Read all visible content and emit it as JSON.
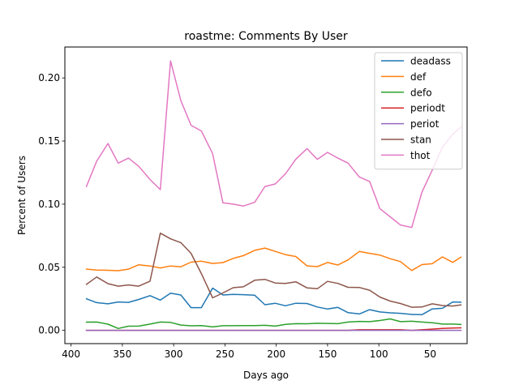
{
  "chart_data": {
    "type": "line",
    "title": "roastme: Comments By User",
    "xlabel": "Days ago",
    "ylabel": "Percent of Users",
    "xlim": [
      406,
      14
    ],
    "ylim": [
      -0.0105,
      0.2245
    ],
    "x_ticks": [
      400,
      350,
      300,
      250,
      200,
      150,
      100,
      50
    ],
    "x_tick_labels": [
      "400",
      "350",
      "300",
      "250",
      "200",
      "150",
      "100",
      "50"
    ],
    "y_ticks": [
      0.0,
      0.05,
      0.1,
      0.15,
      0.2
    ],
    "y_tick_labels": [
      "0.00",
      "0.05",
      "0.10",
      "0.15",
      "0.20"
    ],
    "grid": false,
    "legend_position": "upper right",
    "x": [
      385,
      375,
      364,
      354,
      344,
      334,
      323,
      313,
      303,
      293,
      283,
      273,
      262,
      252,
      242,
      232,
      221,
      211,
      201,
      191,
      181,
      170,
      160,
      150,
      140,
      130,
      119,
      109,
      99,
      89,
      79,
      68,
      58,
      48,
      38,
      28,
      20
    ],
    "series": [
      {
        "name": "deadass",
        "color": "#1f77b4",
        "values": [
          0.025,
          0.022,
          0.021,
          0.0225,
          0.0222,
          0.0245,
          0.0275,
          0.024,
          0.0295,
          0.028,
          0.018,
          0.018,
          0.0335,
          0.028,
          0.0285,
          0.0283,
          0.0278,
          0.0203,
          0.0215,
          0.0195,
          0.0215,
          0.0213,
          0.0185,
          0.0169,
          0.0182,
          0.014,
          0.013,
          0.0164,
          0.0146,
          0.0139,
          0.0135,
          0.0126,
          0.0124,
          0.017,
          0.0175,
          0.0225,
          0.0223
        ]
      },
      {
        "name": "def",
        "color": "#ff7f0e",
        "values": [
          0.0485,
          0.0478,
          0.0476,
          0.0473,
          0.0485,
          0.052,
          0.051,
          0.0495,
          0.051,
          0.0504,
          0.054,
          0.0548,
          0.053,
          0.0537,
          0.057,
          0.0592,
          0.0634,
          0.0652,
          0.0626,
          0.06,
          0.0585,
          0.0511,
          0.0505,
          0.0538,
          0.0518,
          0.0558,
          0.0625,
          0.061,
          0.0597,
          0.0568,
          0.0545,
          0.0474,
          0.0521,
          0.0528,
          0.0582,
          0.0539,
          0.058
        ]
      },
      {
        "name": "defo",
        "color": "#2ca02c",
        "values": [
          0.0065,
          0.0066,
          0.0049,
          0.0015,
          0.0033,
          0.0034,
          0.005,
          0.0066,
          0.0063,
          0.0042,
          0.0036,
          0.0038,
          0.0027,
          0.0037,
          0.0037,
          0.0038,
          0.0038,
          0.004,
          0.0034,
          0.0047,
          0.0053,
          0.0052,
          0.0056,
          0.0055,
          0.0053,
          0.0066,
          0.0071,
          0.0069,
          0.0078,
          0.0091,
          0.0069,
          0.0072,
          0.0066,
          0.006,
          0.005,
          0.005,
          0.0047
        ]
      },
      {
        "name": "periodt",
        "color": "#d62728",
        "values": [
          0.0,
          0.0,
          0.0,
          0.0,
          0.0,
          0.0,
          0.0,
          0.0,
          0.0,
          0.0,
          0.0,
          0.0,
          0.0,
          0.0,
          0.0,
          0.0,
          0.0,
          0.0,
          0.0,
          0.0,
          0.0,
          0.0,
          0.0,
          0.0,
          0.0,
          0.0,
          0.0005,
          0.0005,
          0.0005,
          0.0005,
          0.0005,
          0.0,
          0.0005,
          0.001,
          0.0015,
          0.0018,
          0.002
        ]
      },
      {
        "name": "periot",
        "color": "#9467bd",
        "values": [
          0.0,
          0.0,
          0.0,
          0.0,
          0.0,
          0.0,
          0.0,
          0.0,
          0.0,
          0.0,
          0.0,
          0.0,
          0.0,
          0.0,
          0.0,
          0.0,
          0.0,
          0.0,
          0.0,
          0.0,
          0.0,
          0.0,
          0.0,
          0.0,
          0.0,
          0.0,
          0.0,
          0.0,
          0.0,
          0.0,
          0.0,
          0.0,
          0.0,
          0.0,
          0.0,
          0.0,
          0.0
        ]
      },
      {
        "name": "stan",
        "color": "#8c564b",
        "values": [
          0.0365,
          0.0423,
          0.037,
          0.035,
          0.036,
          0.035,
          0.039,
          0.077,
          0.0725,
          0.0695,
          0.061,
          0.045,
          0.0258,
          0.0296,
          0.0338,
          0.0345,
          0.0397,
          0.0404,
          0.0375,
          0.0372,
          0.0385,
          0.0337,
          0.033,
          0.0388,
          0.0372,
          0.0341,
          0.034,
          0.0318,
          0.0264,
          0.0232,
          0.0213,
          0.0183,
          0.0185,
          0.021,
          0.0197,
          0.0193,
          0.0202
        ]
      },
      {
        "name": "thot",
        "color": "#e377c2",
        "values": [
          0.114,
          0.134,
          0.148,
          0.1325,
          0.1365,
          0.13,
          0.1195,
          0.1115,
          0.2135,
          0.182,
          0.1625,
          0.158,
          0.14,
          0.101,
          0.1,
          0.0985,
          0.1015,
          0.114,
          0.116,
          0.124,
          0.1355,
          0.144,
          0.1355,
          0.141,
          0.1365,
          0.1325,
          0.1215,
          0.118,
          0.0965,
          0.09,
          0.0835,
          0.0815,
          0.1095,
          0.127,
          0.145,
          0.1555,
          0.161
        ]
      }
    ]
  }
}
